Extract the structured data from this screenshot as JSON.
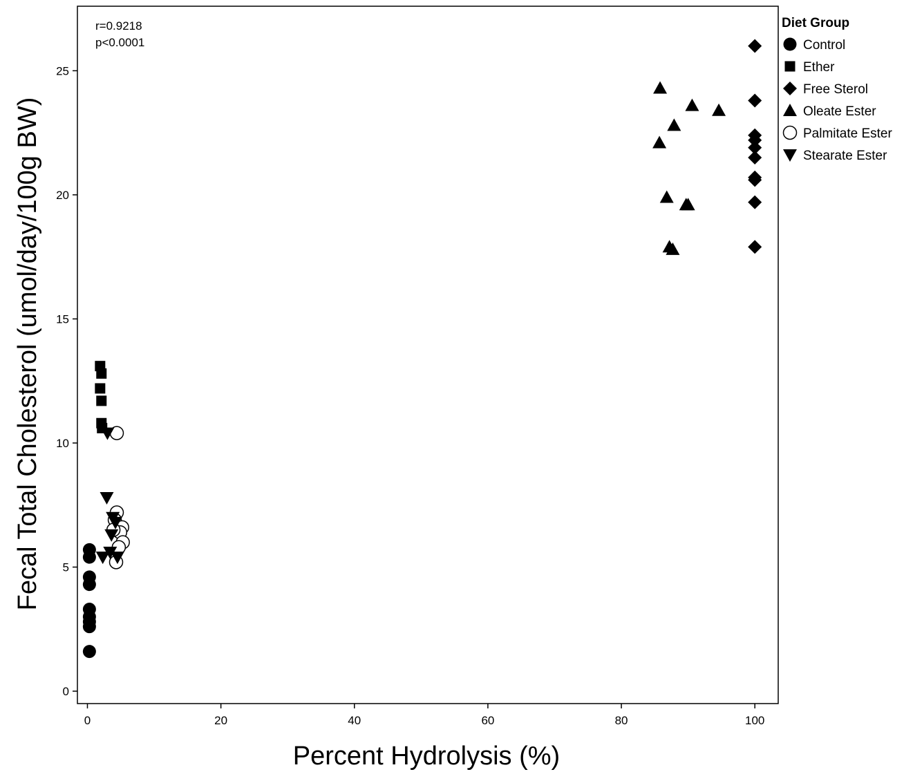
{
  "chart_data": {
    "type": "scatter",
    "xlabel": "Percent Hydrolysis (%)",
    "ylabel": "Fecal Total Cholesterol (umol/day/100g BW)",
    "xlim": [
      -1.5,
      103.5
    ],
    "ylim": [
      -0.5,
      27.6
    ],
    "x_ticks": [
      0,
      20,
      40,
      60,
      80,
      100
    ],
    "y_ticks": [
      0,
      5,
      10,
      15,
      20,
      25
    ],
    "grid": false,
    "legend_title": "Diet Group",
    "legend_position": "right",
    "annotations": [
      "r=0.9218",
      "p<0.0001"
    ],
    "series": [
      {
        "name": "Control",
        "marker": "circle-filled",
        "color": "#000000",
        "points": [
          [
            0.3,
            5.7
          ],
          [
            0.3,
            5.4
          ],
          [
            0.3,
            4.6
          ],
          [
            0.3,
            4.3
          ],
          [
            0.3,
            3.3
          ],
          [
            0.3,
            3.0
          ],
          [
            0.3,
            2.8
          ],
          [
            0.3,
            2.6
          ],
          [
            0.3,
            1.6
          ]
        ]
      },
      {
        "name": "Ether",
        "marker": "square",
        "color": "#000000",
        "points": [
          [
            1.9,
            13.1
          ],
          [
            2.1,
            12.8
          ],
          [
            1.9,
            12.2
          ],
          [
            2.1,
            11.7
          ],
          [
            2.1,
            10.8
          ],
          [
            2.2,
            10.6
          ]
        ]
      },
      {
        "name": "Free Sterol",
        "marker": "diamond",
        "color": "#000000",
        "points": [
          [
            100,
            26.0
          ],
          [
            100,
            23.8
          ],
          [
            100,
            22.4
          ],
          [
            100,
            22.2
          ],
          [
            100,
            21.9
          ],
          [
            100,
            21.5
          ],
          [
            100,
            20.7
          ],
          [
            100,
            20.6
          ],
          [
            100,
            19.7
          ],
          [
            100,
            17.9
          ]
        ]
      },
      {
        "name": "Oleate Ester",
        "marker": "triangle-up",
        "color": "#000000",
        "points": [
          [
            85.8,
            24.3
          ],
          [
            90.6,
            23.6
          ],
          [
            94.6,
            23.4
          ],
          [
            87.9,
            22.8
          ],
          [
            85.7,
            22.1
          ],
          [
            86.8,
            19.9
          ],
          [
            89.7,
            19.6
          ],
          [
            90.0,
            19.6
          ],
          [
            87.2,
            17.9
          ],
          [
            87.7,
            17.8
          ]
        ]
      },
      {
        "name": "Palmitate Ester",
        "marker": "circle-open",
        "color": "#000000",
        "points": [
          [
            4.4,
            10.4
          ],
          [
            4.4,
            7.2
          ],
          [
            4.1,
            6.9
          ],
          [
            5.2,
            6.6
          ],
          [
            4.9,
            6.4
          ],
          [
            3.9,
            6.5
          ],
          [
            5.3,
            6.0
          ],
          [
            4.7,
            5.8
          ],
          [
            4.3,
            5.2
          ]
        ]
      },
      {
        "name": "Stearate Ester",
        "marker": "triangle-down",
        "color": "#000000",
        "points": [
          [
            3.0,
            10.4
          ],
          [
            2.9,
            7.8
          ],
          [
            3.8,
            7.0
          ],
          [
            4.2,
            6.8
          ],
          [
            3.6,
            6.3
          ],
          [
            3.4,
            5.6
          ],
          [
            2.3,
            5.4
          ],
          [
            4.5,
            5.4
          ]
        ]
      }
    ]
  }
}
